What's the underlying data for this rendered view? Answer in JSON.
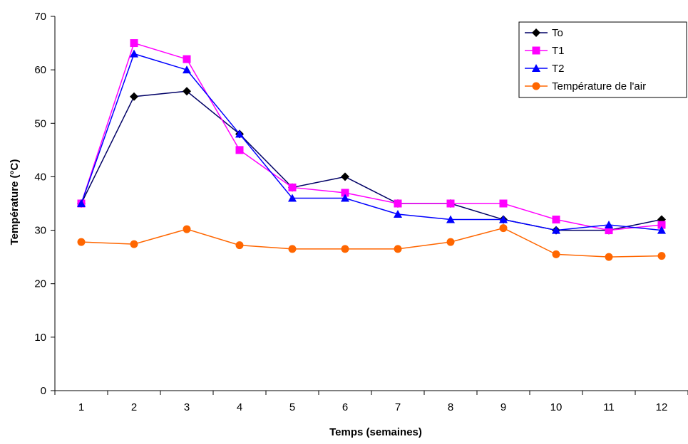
{
  "chart_data": {
    "type": "line",
    "title": "",
    "xlabel": "Temps (semaines)",
    "ylabel": "Température (°C)",
    "categories": [
      "1",
      "2",
      "3",
      "4",
      "5",
      "6",
      "7",
      "8",
      "9",
      "10",
      "11",
      "12"
    ],
    "ylim": [
      0,
      70
    ],
    "yticks": [
      0,
      10,
      20,
      30,
      40,
      50,
      60,
      70
    ],
    "grid": false,
    "legend_position": "top-right",
    "series": [
      {
        "name": "To",
        "color": "#000000",
        "line_color": "#000066",
        "marker": "diamond",
        "values": [
          35,
          55,
          56,
          48,
          38,
          40,
          35,
          35,
          32,
          30,
          30,
          32
        ]
      },
      {
        "name": "T1",
        "color": "#FF00FF",
        "line_color": "#FF00FF",
        "marker": "square",
        "values": [
          35,
          65,
          62,
          45,
          38,
          37,
          35,
          35,
          35,
          32,
          30,
          31
        ]
      },
      {
        "name": "T2",
        "color": "#0000FF",
        "line_color": "#0000FF",
        "marker": "triangle",
        "values": [
          35,
          63,
          60,
          48,
          36,
          36,
          33,
          32,
          32,
          30,
          31,
          30
        ]
      },
      {
        "name": "Température de l'air",
        "color": "#FF6600",
        "line_color": "#FF6600",
        "marker": "circle",
        "values": [
          27.8,
          27.4,
          30.2,
          27.2,
          26.5,
          26.5,
          26.5,
          27.8,
          30.4,
          25.5,
          25.0,
          25.2
        ]
      }
    ]
  }
}
